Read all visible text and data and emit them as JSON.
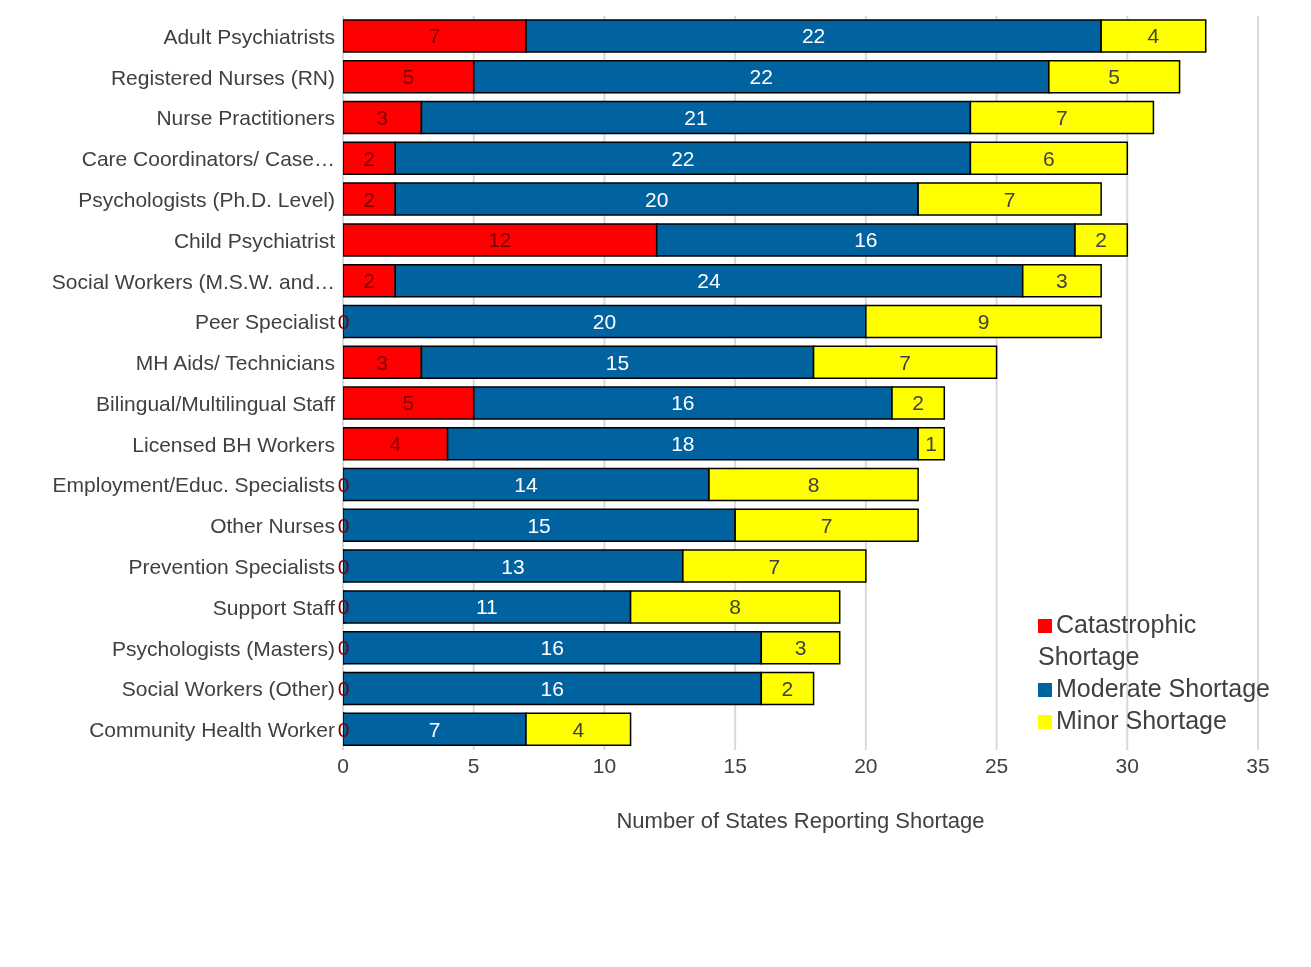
{
  "chart_data": {
    "type": "bar",
    "orientation": "horizontal",
    "stacked": true,
    "xlabel": "Number of States Reporting Shortage",
    "categories": [
      "Adult Psychiatrists",
      "Registered Nurses (RN)",
      "Nurse Practitioners",
      "Care Coordinators/ Case…",
      "Psychologists (Ph.D. Level)",
      "Child Psychiatrist",
      "Social Workers (M.S.W. and…",
      "Peer Specialist",
      "MH Aids/ Technicians",
      "Bilingual/Multilingual Staff",
      "Licensed BH Workers",
      "Employment/Educ. Specialists",
      "Other Nurses",
      "Prevention Specialists",
      "Support Staff",
      "Psychologists (Masters)",
      "Social Workers (Other)",
      "Community Health Worker"
    ],
    "series": [
      {
        "name": "Catastrophic Shortage",
        "color": "#ff0000",
        "values": [
          7,
          5,
          3,
          2,
          2,
          12,
          2,
          0,
          3,
          5,
          4,
          0,
          0,
          0,
          0,
          0,
          0,
          0
        ]
      },
      {
        "name": "Moderate Shortage",
        "color": "#0063a0",
        "values": [
          22,
          22,
          21,
          22,
          20,
          16,
          24,
          20,
          15,
          16,
          18,
          14,
          15,
          13,
          11,
          16,
          16,
          7
        ]
      },
      {
        "name": "Minor Shortage",
        "color": "#ffff00",
        "values": [
          4,
          5,
          7,
          6,
          7,
          2,
          3,
          9,
          7,
          2,
          1,
          8,
          7,
          7,
          8,
          3,
          2,
          4
        ]
      }
    ],
    "xlim": [
      0,
      35
    ],
    "xticks": [
      0,
      5,
      10,
      15,
      20,
      25,
      30,
      35
    ],
    "grid": "x",
    "legend": "bottom right",
    "data_labels": true
  }
}
